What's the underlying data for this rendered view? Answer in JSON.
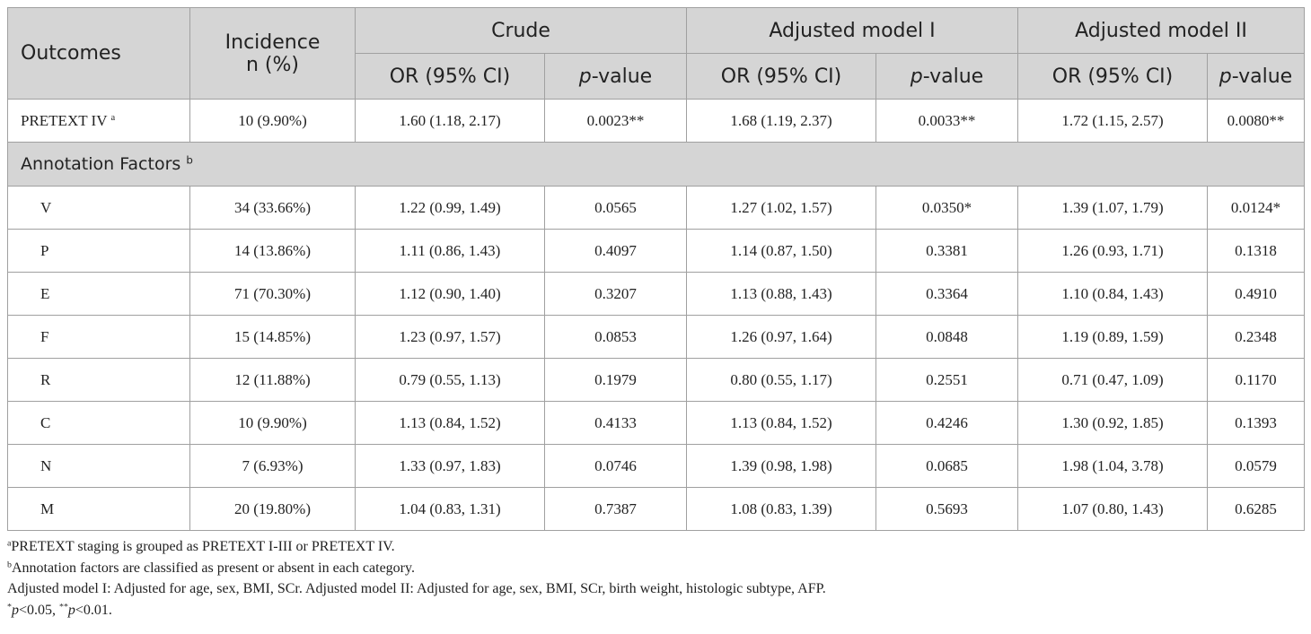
{
  "table": {
    "headers": {
      "outcomes": "Outcomes",
      "incidence_line1": "Incidence",
      "incidence_line2": "n (%)",
      "groups": [
        "Crude",
        "Adjusted model I",
        "Adjusted model II"
      ],
      "or_label": "OR (95% CI)",
      "p_prefix": "p",
      "p_suffix": "-value"
    },
    "pretext_row": {
      "label": "PRETEXT IV",
      "sup": "a",
      "incidence": "10 (9.90%)",
      "cells": [
        "1.60 (1.18, 2.17)",
        "0.0023**",
        "1.68 (1.19, 2.37)",
        "0.0033**",
        "1.72 (1.15, 2.57)",
        "0.0080**"
      ]
    },
    "section": {
      "label": "Annotation Factors",
      "sup": "b"
    },
    "rows": [
      {
        "label": "V",
        "incidence": "34 (33.66%)",
        "cells": [
          "1.22 (0.99, 1.49)",
          "0.0565",
          "1.27 (1.02, 1.57)",
          "0.0350*",
          "1.39 (1.07, 1.79)",
          "0.0124*"
        ]
      },
      {
        "label": "P",
        "incidence": "14 (13.86%)",
        "cells": [
          "1.11 (0.86, 1.43)",
          "0.4097",
          "1.14 (0.87, 1.50)",
          "0.3381",
          "1.26 (0.93, 1.71)",
          "0.1318"
        ]
      },
      {
        "label": "E",
        "incidence": "71 (70.30%)",
        "cells": [
          "1.12 (0.90, 1.40)",
          "0.3207",
          "1.13 (0.88, 1.43)",
          "0.3364",
          "1.10 (0.84, 1.43)",
          "0.4910"
        ]
      },
      {
        "label": "F",
        "incidence": "15 (14.85%)",
        "cells": [
          "1.23 (0.97, 1.57)",
          "0.0853",
          "1.26 (0.97, 1.64)",
          "0.0848",
          "1.19 (0.89, 1.59)",
          "0.2348"
        ]
      },
      {
        "label": "R",
        "incidence": "12 (11.88%)",
        "cells": [
          "0.79 (0.55, 1.13)",
          "0.1979",
          "0.80 (0.55, 1.17)",
          "0.2551",
          "0.71 (0.47, 1.09)",
          "0.1170"
        ]
      },
      {
        "label": "C",
        "incidence": "10 (9.90%)",
        "cells": [
          "1.13 (0.84, 1.52)",
          "0.4133",
          "1.13 (0.84, 1.52)",
          "0.4246",
          "1.30 (0.92, 1.85)",
          "0.1393"
        ]
      },
      {
        "label": "N",
        "incidence": "7 (6.93%)",
        "cells": [
          "1.33 (0.97, 1.83)",
          "0.0746",
          "1.39 (0.98, 1.98)",
          "0.0685",
          "1.98 (1.04, 3.78)",
          "0.0579"
        ]
      },
      {
        "label": "M",
        "incidence": "20 (19.80%)",
        "cells": [
          "1.04 (0.83, 1.31)",
          "0.7387",
          "1.08 (0.83, 1.39)",
          "0.5693",
          "1.07 (0.80, 1.43)",
          "0.6285"
        ]
      }
    ]
  },
  "footnotes": {
    "a_sup": "a",
    "a_text": "PRETEXT staging is grouped as PRETEXT I-III or PRETEXT IV.",
    "b_sup": "b",
    "b_text": "Annotation factors are classified as present or absent in each category.",
    "adjusted_text": "Adjusted model I: Adjusted for age, sex, BMI, SCr. Adjusted model II: Adjusted for age, sex, BMI, SCr, birth weight, histologic subtype, AFP.",
    "sig_star1": "*",
    "sig_p1": "p",
    "sig_rest1": "<0.05, ",
    "sig_star2": "**",
    "sig_p2": "p",
    "sig_rest2": "<0.01."
  }
}
